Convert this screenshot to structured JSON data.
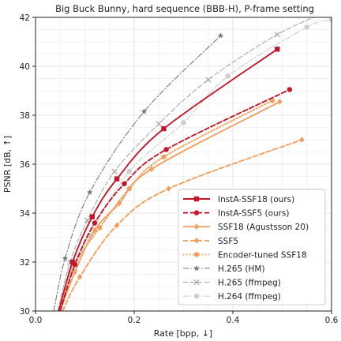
{
  "chart_data": {
    "type": "line",
    "title": "Big Buck Bunny, hard sequence (BBB-H), P-frame setting",
    "xlabel": "Rate [bpp, ↓]",
    "ylabel": "PSNR [dB, ↑]",
    "xlim": [
      0.0,
      0.6
    ],
    "ylim": [
      30,
      42
    ],
    "xticks": [
      "0.0",
      "0.2",
      "0.4",
      "0.6"
    ],
    "yticks": [
      "30",
      "32",
      "34",
      "36",
      "38",
      "40",
      "42"
    ],
    "grid": true,
    "legend_position": "lower-right",
    "series": [
      {
        "name": "InstA-SSF18 (ours)",
        "color": "#c0182a",
        "dash": "solid",
        "marker": "square",
        "x": [
          0.047,
          0.075,
          0.115,
          0.165,
          0.26,
          0.49
        ],
        "y": [
          30.0,
          32.0,
          33.85,
          35.4,
          37.45,
          40.7
        ]
      },
      {
        "name": "InstA-SSF5 (ours)",
        "color": "#c0182a",
        "dash": "dashed",
        "marker": "circle",
        "x": [
          0.05,
          0.08,
          0.12,
          0.18,
          0.265,
          0.515
        ],
        "y": [
          30.0,
          31.9,
          33.6,
          35.2,
          36.6,
          39.05
        ]
      },
      {
        "name": "SSF18 (Agustsson 20)",
        "color": "#f0a060",
        "dash": "solid",
        "marker": "diamond",
        "x": [
          0.05,
          0.08,
          0.12,
          0.17,
          0.235,
          0.495
        ],
        "y": [
          30.0,
          31.6,
          33.3,
          34.4,
          35.8,
          38.55
        ]
      },
      {
        "name": "SSF5",
        "color": "#f0a060",
        "dash": "dashed",
        "marker": "diamond",
        "x": [
          0.055,
          0.09,
          0.165,
          0.27,
          0.54
        ],
        "y": [
          30.0,
          31.4,
          33.5,
          35.0,
          37.0
        ]
      },
      {
        "name": "Encoder-tuned SSF18",
        "color": "#f0a060",
        "dash": "dotted",
        "marker": "circle",
        "x": [
          0.05,
          0.08,
          0.13,
          0.19,
          0.26,
          0.48
        ],
        "y": [
          30.0,
          31.9,
          33.4,
          35.0,
          36.3,
          38.6
        ]
      },
      {
        "name": "H.265 (HM)",
        "color": "#7a7a7a",
        "dash": "dashdot",
        "marker": "star",
        "x": [
          0.037,
          0.06,
          0.11,
          0.22,
          0.375
        ],
        "y": [
          30.0,
          32.15,
          34.85,
          38.15,
          41.25
        ]
      },
      {
        "name": "H.265 (ffmpeg)",
        "color": "#a8a8a8",
        "dash": "dashed",
        "marker": "x",
        "x": [
          0.045,
          0.07,
          0.105,
          0.16,
          0.25,
          0.35,
          0.49,
          0.6
        ],
        "y": [
          30.0,
          32.0,
          33.7,
          35.7,
          37.65,
          39.45,
          41.3,
          42.3
        ]
      },
      {
        "name": "H.264 (ffmpeg)",
        "color": "#cdcdcd",
        "dash": "dashdot",
        "marker": "circle",
        "x": [
          0.05,
          0.07,
          0.11,
          0.19,
          0.3,
          0.39,
          0.55,
          0.6
        ],
        "y": [
          30.0,
          31.6,
          33.1,
          35.7,
          37.7,
          39.6,
          41.6,
          41.9
        ]
      }
    ]
  }
}
